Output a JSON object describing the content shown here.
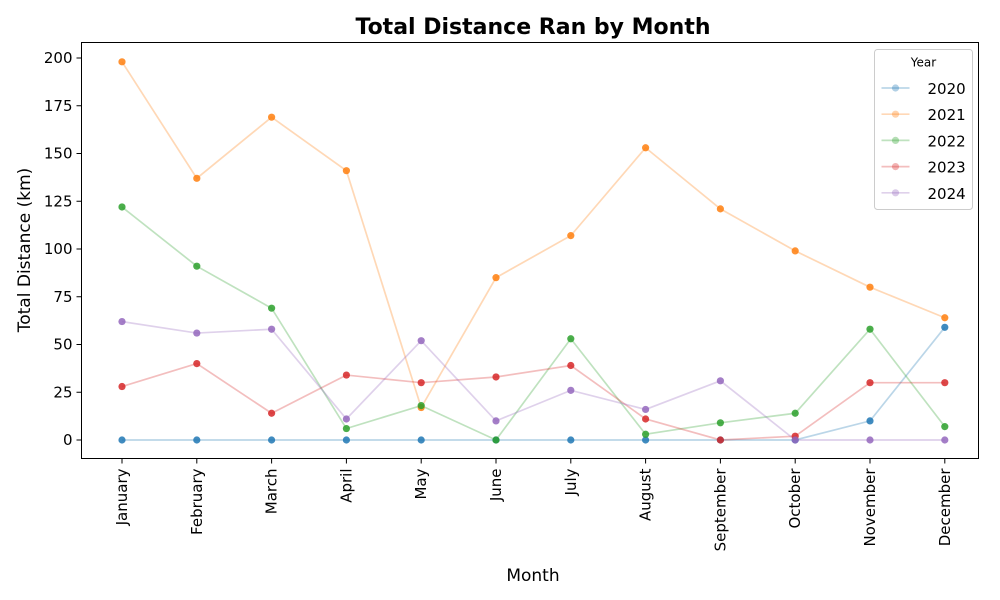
{
  "chart_data": {
    "type": "line",
    "title": "Total Distance Ran by Month",
    "xlabel": "Month",
    "ylabel": "Total Distance (km)",
    "categories": [
      "January",
      "February",
      "March",
      "April",
      "May",
      "June",
      "July",
      "August",
      "September",
      "October",
      "November",
      "December"
    ],
    "ylim": [
      -10,
      208
    ],
    "yticks": [
      0,
      25,
      50,
      75,
      100,
      125,
      150,
      175,
      200
    ],
    "grid": false,
    "legend": {
      "title": "Year",
      "placement": "top-right"
    },
    "series": [
      {
        "name": "2020",
        "color": "#1f77b4",
        "values": [
          0,
          0,
          0,
          0,
          0,
          0,
          0,
          0,
          0,
          0,
          10,
          59
        ]
      },
      {
        "name": "2021",
        "color": "#ff7f0e",
        "values": [
          198,
          137,
          169,
          141,
          17,
          85,
          107,
          153,
          121,
          99,
          80,
          64
        ]
      },
      {
        "name": "2022",
        "color": "#2ca02c",
        "values": [
          122,
          91,
          69,
          6,
          18,
          0,
          53,
          3,
          9,
          14,
          58,
          7
        ]
      },
      {
        "name": "2023",
        "color": "#d62728",
        "values": [
          28,
          40,
          14,
          34,
          30,
          33,
          39,
          11,
          0,
          2,
          30,
          30
        ]
      },
      {
        "name": "2024",
        "color": "#9467bd",
        "values": [
          62,
          56,
          58,
          11,
          52,
          10,
          26,
          16,
          31,
          0,
          0,
          0
        ]
      }
    ]
  }
}
